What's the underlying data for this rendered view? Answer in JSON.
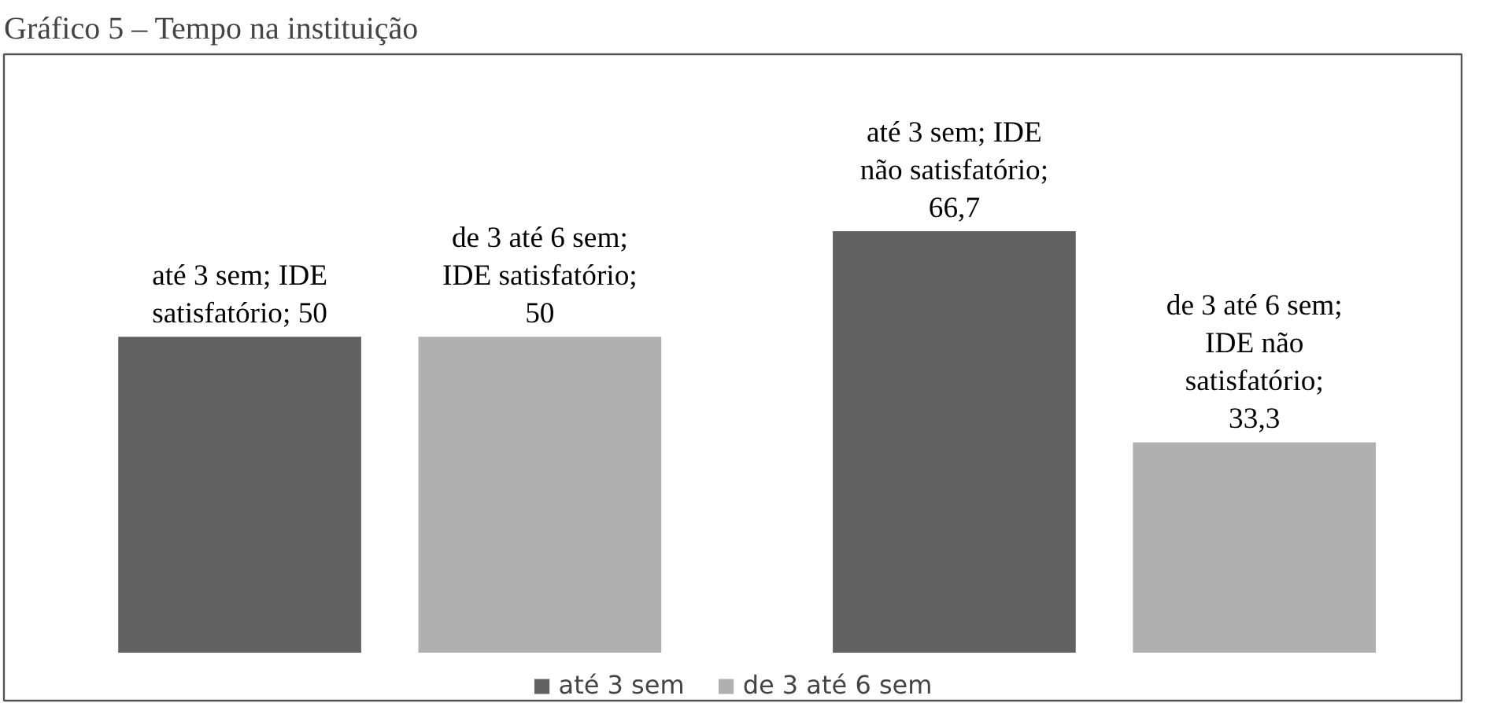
{
  "chart_data": {
    "type": "bar",
    "title": "Gráfico 5 – Tempo na instituição",
    "categories": [
      null,
      null
    ],
    "series": [
      {
        "name": "até 3 sem",
        "color": "#616161",
        "values": [
          50,
          66.7
        ],
        "value_labels": [
          "até 3 sem; IDE satisfatório; 50",
          "até 3 sem; IDE não satisfatório; 66,7"
        ]
      },
      {
        "name": "de 3 até 6 sem",
        "color": "#b0b0b0",
        "values": [
          50,
          33.3
        ],
        "value_labels": [
          "de 3 até 6 sem; IDE satisfatório; 50",
          "de 3 até 6 sem; IDE não satisfatório; 33,3"
        ]
      }
    ],
    "legend": "bottom"
  }
}
